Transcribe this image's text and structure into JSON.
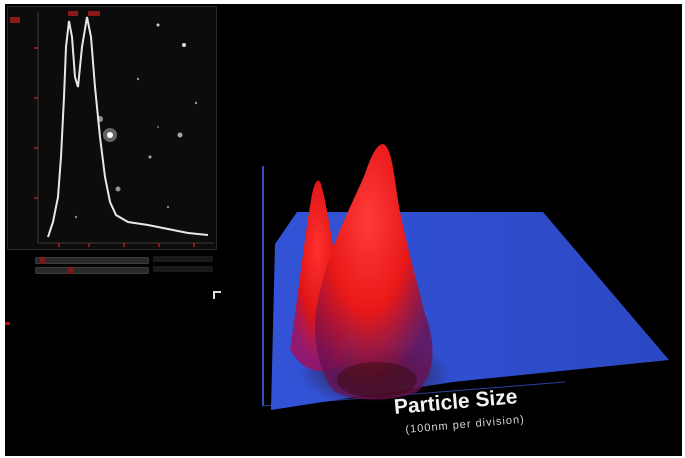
{
  "video_panel": {
    "tick_labels_top": [
      "",
      "",
      ""
    ],
    "tick_labels_bottom": [
      "",
      "",
      "",
      "",
      ""
    ]
  },
  "controls": {
    "slider_1": {
      "label": "",
      "level": 0.05
    },
    "slider_2": {
      "label": "",
      "level": 0.3
    }
  },
  "plot": {
    "title": "Particle Size",
    "subtitle": "(100nm per division)"
  },
  "colors": {
    "background": "#000000",
    "surface_base": "#2f4fd0",
    "peak": "#ff1a1a",
    "trace": "#e8e8e8",
    "axis_labels": "#b01818"
  },
  "icons": [
    "mouse-pointer-icon"
  ]
}
